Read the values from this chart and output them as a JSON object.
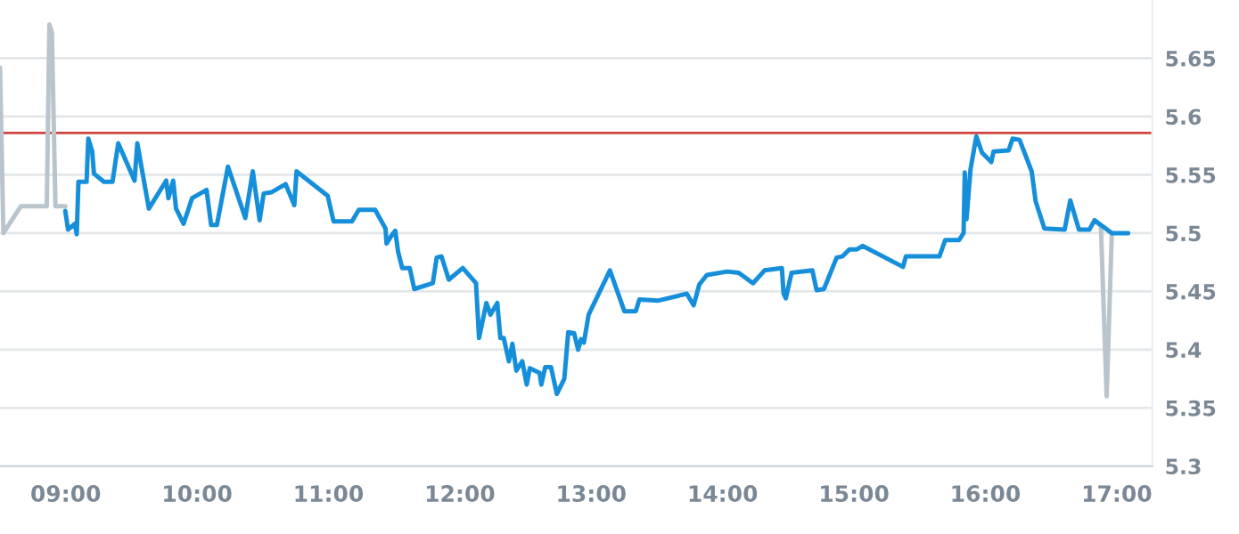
{
  "chart_data": {
    "type": "line",
    "xlim": [
      8.5,
      17.27
    ],
    "ylim": [
      5.3,
      5.7
    ],
    "xticks": [
      {
        "value": 9,
        "label": "09:00"
      },
      {
        "value": 10,
        "label": "10:00"
      },
      {
        "value": 11,
        "label": "11:00"
      },
      {
        "value": 12,
        "label": "12:00"
      },
      {
        "value": 13,
        "label": "13:00"
      },
      {
        "value": 14,
        "label": "14:00"
      },
      {
        "value": 15,
        "label": "15:00"
      },
      {
        "value": 16,
        "label": "16:00"
      },
      {
        "value": 17,
        "label": "17:00"
      }
    ],
    "yticks": [
      5.3,
      5.35,
      5.4,
      5.45,
      5.5,
      5.55,
      5.6,
      5.65
    ],
    "grid": "y",
    "legend": false,
    "marker": "none",
    "line_style": "solid",
    "ref_lines": [
      {
        "axis": "y",
        "value": 5.586,
        "color": "#d0453f"
      }
    ],
    "series": [
      {
        "color": "#b9c4cc",
        "x": [
          8.5,
          8.526,
          8.658,
          8.856,
          8.876,
          8.895,
          8.922,
          8.997
        ],
        "values": [
          5.642,
          5.5,
          5.523,
          5.523,
          5.679,
          5.672,
          5.523,
          5.523
        ]
      },
      {
        "color": "#b9c4cc",
        "x": [
          16.831,
          16.879,
          16.923,
          16.962
        ],
        "values": [
          5.511,
          5.506,
          5.36,
          5.5
        ]
      },
      {
        "color": "#168fdb",
        "x": [
          8.997,
          9.018,
          9.07,
          9.084,
          9.097,
          9.159,
          9.172,
          9.202,
          9.215,
          9.291,
          9.356,
          9.4,
          9.524,
          9.545,
          9.633,
          9.765,
          9.782,
          9.818,
          9.84,
          9.897,
          9.962,
          10.072,
          10.107,
          10.151,
          10.235,
          10.367,
          10.424,
          10.476,
          10.507,
          10.565,
          10.674,
          10.74,
          10.757,
          10.994,
          11.039,
          11.179,
          11.231,
          11.355,
          11.434,
          11.442,
          11.487,
          11.508,
          11.53,
          11.561,
          11.619,
          11.653,
          11.794,
          11.824,
          11.86,
          11.916,
          12.022,
          12.123,
          12.146,
          12.202,
          12.233,
          12.285,
          12.308,
          12.334,
          12.373,
          12.4,
          12.43,
          12.475,
          12.509,
          12.532,
          12.607,
          12.62,
          12.65,
          12.694,
          12.738,
          12.795,
          12.825,
          12.87,
          12.9,
          12.923,
          12.944,
          12.98,
          13.142,
          13.252,
          13.339,
          13.366,
          13.507,
          13.727,
          13.779,
          13.823,
          13.88,
          14.034,
          14.122,
          14.231,
          14.319,
          14.451,
          14.464,
          14.481,
          14.525,
          14.683,
          14.715,
          14.771,
          14.868,
          14.912,
          14.965,
          15.022,
          15.065,
          15.373,
          15.395,
          15.65,
          15.694,
          15.799,
          15.834,
          15.843,
          15.856,
          15.887,
          15.931,
          15.974,
          16.045,
          16.062,
          16.177,
          16.207,
          16.26,
          16.352,
          16.383,
          16.449,
          16.603,
          16.646,
          16.712,
          16.791,
          16.831,
          16.962,
          17.086
        ],
        "values": [
          5.519,
          5.503,
          5.508,
          5.499,
          5.544,
          5.544,
          5.581,
          5.57,
          5.551,
          5.544,
          5.544,
          5.577,
          5.545,
          5.577,
          5.521,
          5.545,
          5.53,
          5.545,
          5.521,
          5.508,
          5.53,
          5.537,
          5.507,
          5.507,
          5.557,
          5.513,
          5.553,
          5.511,
          5.534,
          5.535,
          5.542,
          5.524,
          5.553,
          5.532,
          5.51,
          5.51,
          5.52,
          5.52,
          5.504,
          5.491,
          5.499,
          5.502,
          5.484,
          5.47,
          5.47,
          5.452,
          5.457,
          5.479,
          5.48,
          5.46,
          5.47,
          5.457,
          5.41,
          5.44,
          5.43,
          5.44,
          5.41,
          5.41,
          5.39,
          5.405,
          5.382,
          5.39,
          5.37,
          5.384,
          5.38,
          5.37,
          5.385,
          5.385,
          5.362,
          5.375,
          5.415,
          5.414,
          5.4,
          5.409,
          5.406,
          5.43,
          5.468,
          5.433,
          5.433,
          5.443,
          5.442,
          5.448,
          5.438,
          5.456,
          5.464,
          5.467,
          5.466,
          5.457,
          5.468,
          5.47,
          5.448,
          5.444,
          5.466,
          5.468,
          5.451,
          5.452,
          5.479,
          5.48,
          5.486,
          5.486,
          5.489,
          5.471,
          5.48,
          5.48,
          5.494,
          5.494,
          5.5,
          5.552,
          5.512,
          5.555,
          5.583,
          5.569,
          5.561,
          5.57,
          5.571,
          5.581,
          5.58,
          5.553,
          5.527,
          5.504,
          5.503,
          5.528,
          5.503,
          5.503,
          5.511,
          5.5,
          5.5
        ]
      }
    ]
  }
}
